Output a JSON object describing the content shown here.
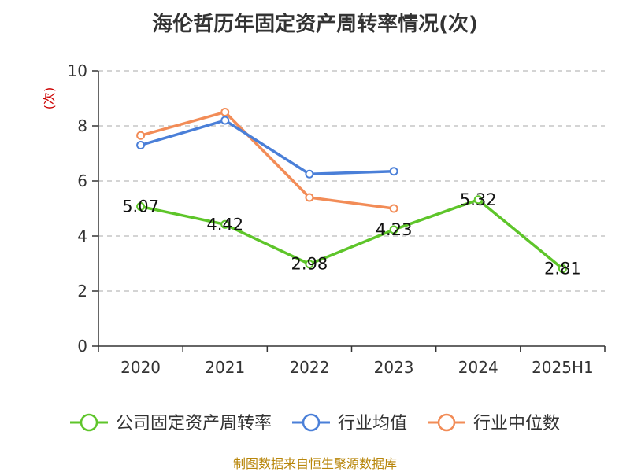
{
  "chart_data": {
    "type": "line",
    "title": "海伦哲历年固定资产周转率情况(次)",
    "ylabel": "(次)",
    "xlabel": "",
    "categories": [
      "2020",
      "2021",
      "2022",
      "2023",
      "2024",
      "2025H1"
    ],
    "ylim": [
      0,
      10
    ],
    "yticks": [
      0,
      2,
      4,
      6,
      8,
      10
    ],
    "grid": true,
    "legend_position": "bottom",
    "series": [
      {
        "name": "公司固定资产周转率",
        "color": "#5ec52a",
        "values": [
          5.07,
          4.42,
          2.98,
          4.23,
          5.32,
          2.81
        ],
        "labels": [
          "5.07",
          "4.42",
          "2.98",
          "4.23",
          "5.32",
          "2.81"
        ]
      },
      {
        "name": "行业均值",
        "color": "#4a7fd8",
        "values": [
          7.3,
          8.2,
          6.25,
          6.35,
          null,
          null
        ]
      },
      {
        "name": "行业中位数",
        "color": "#f28c57",
        "values": [
          7.65,
          8.5,
          5.4,
          5.0,
          null,
          null
        ]
      }
    ]
  },
  "source": "制图数据来自恒生聚源数据库"
}
